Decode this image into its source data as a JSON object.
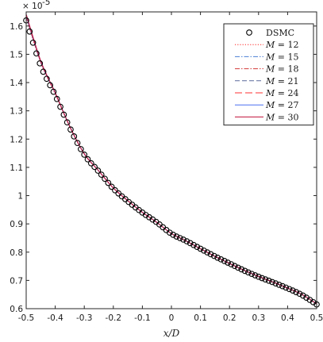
{
  "chart_data": {
    "type": "line",
    "title": "",
    "xlabel": "x/D",
    "ylabel": "",
    "xlim": [
      -0.5,
      0.5
    ],
    "ylim": [
      0.6,
      1.65
    ],
    "y_multiplier_label": "× 10",
    "y_multiplier_exponent": "-5",
    "x_ticks": [
      -0.5,
      -0.4,
      -0.3,
      -0.2,
      -0.1,
      0,
      0.1,
      0.2,
      0.3,
      0.4,
      0.5
    ],
    "x_tick_labels": [
      "-0.5",
      "-0.4",
      "-0.3",
      "-0.2",
      "-0.1",
      "0",
      "0.1",
      "0.2",
      "0.3",
      "0.4",
      "0.5"
    ],
    "y_ticks": [
      0.6,
      0.7,
      0.8,
      0.9,
      1.0,
      1.1,
      1.2,
      1.3,
      1.4,
      1.5,
      1.6
    ],
    "y_tick_labels": [
      "0.6",
      "0.7",
      "0.8",
      "0.9",
      "1",
      "1.1",
      "1.2",
      "1.3",
      "1.4",
      "1.5",
      "1.6"
    ],
    "grid": false,
    "legend_position": "top-right",
    "x": [
      -0.5,
      -0.45,
      -0.4,
      -0.35,
      -0.3,
      -0.25,
      -0.2,
      -0.15,
      -0.1,
      -0.05,
      0.0,
      0.05,
      0.1,
      0.15,
      0.2,
      0.25,
      0.3,
      0.35,
      0.4,
      0.45,
      0.5
    ],
    "series": [
      {
        "name": "DSMC",
        "style": "markers",
        "color": "#000000",
        "values": [
          1.62,
          1.46,
          1.355,
          1.24,
          1.145,
          1.085,
          1.025,
          0.98,
          0.94,
          0.905,
          0.865,
          0.84,
          0.812,
          0.785,
          0.76,
          0.735,
          0.713,
          0.693,
          0.672,
          0.648,
          0.615
        ]
      },
      {
        "name": "M = 12",
        "style": "dotted",
        "color": "#ff2020",
        "values": [
          1.63,
          1.47,
          1.36,
          1.243,
          1.147,
          1.087,
          1.027,
          0.982,
          0.941,
          0.905,
          0.866,
          0.84,
          0.812,
          0.785,
          0.76,
          0.736,
          0.714,
          0.694,
          0.673,
          0.65,
          0.618
        ]
      },
      {
        "name": "M = 15",
        "style": "dashdot",
        "color": "#4a7fd4",
        "values": [
          1.632,
          1.472,
          1.362,
          1.244,
          1.148,
          1.087,
          1.027,
          0.982,
          0.941,
          0.905,
          0.866,
          0.84,
          0.812,
          0.785,
          0.76,
          0.736,
          0.714,
          0.694,
          0.673,
          0.65,
          0.618
        ]
      },
      {
        "name": "M = 18",
        "style": "dashdot",
        "color": "#d43a3a",
        "values": [
          1.634,
          1.473,
          1.362,
          1.244,
          1.148,
          1.087,
          1.027,
          0.982,
          0.941,
          0.905,
          0.866,
          0.84,
          0.812,
          0.785,
          0.76,
          0.736,
          0.714,
          0.694,
          0.673,
          0.65,
          0.617
        ]
      },
      {
        "name": "M = 21",
        "style": "dashed",
        "color": "#5a6a9a",
        "values": [
          1.636,
          1.474,
          1.363,
          1.245,
          1.148,
          1.087,
          1.027,
          0.982,
          0.941,
          0.905,
          0.866,
          0.84,
          0.812,
          0.785,
          0.76,
          0.736,
          0.714,
          0.694,
          0.673,
          0.65,
          0.617
        ]
      },
      {
        "name": "M = 24",
        "style": "longdash",
        "color": "#ff3030",
        "values": [
          1.638,
          1.475,
          1.363,
          1.245,
          1.148,
          1.087,
          1.027,
          0.982,
          0.941,
          0.905,
          0.866,
          0.84,
          0.812,
          0.785,
          0.76,
          0.736,
          0.714,
          0.694,
          0.673,
          0.65,
          0.617
        ]
      },
      {
        "name": "M = 27",
        "style": "solid",
        "color": "#4a6ff0",
        "values": [
          1.64,
          1.476,
          1.364,
          1.245,
          1.148,
          1.087,
          1.027,
          0.982,
          0.941,
          0.905,
          0.866,
          0.84,
          0.812,
          0.785,
          0.76,
          0.736,
          0.714,
          0.694,
          0.673,
          0.65,
          0.617
        ]
      },
      {
        "name": "M = 30",
        "style": "solid",
        "color": "#c0103a",
        "values": [
          1.642,
          1.477,
          1.364,
          1.245,
          1.148,
          1.087,
          1.027,
          0.982,
          0.941,
          0.905,
          0.866,
          0.84,
          0.812,
          0.785,
          0.76,
          0.736,
          0.714,
          0.694,
          0.673,
          0.65,
          0.617
        ]
      }
    ],
    "legend": [
      {
        "prefix": "",
        "label": "DSMC"
      },
      {
        "prefix": "M",
        "label": " = 12"
      },
      {
        "prefix": "M",
        "label": " = 15"
      },
      {
        "prefix": "M",
        "label": " = 18"
      },
      {
        "prefix": "M",
        "label": " = 21"
      },
      {
        "prefix": "M",
        "label": " = 24"
      },
      {
        "prefix": "M",
        "label": " = 27"
      },
      {
        "prefix": "M",
        "label": " = 30"
      }
    ]
  }
}
